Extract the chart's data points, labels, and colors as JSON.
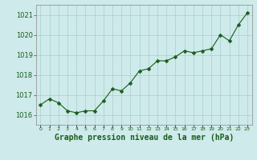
{
  "x": [
    0,
    1,
    2,
    3,
    4,
    5,
    6,
    7,
    8,
    9,
    10,
    11,
    12,
    13,
    14,
    15,
    16,
    17,
    18,
    19,
    20,
    21,
    22,
    23
  ],
  "y": [
    1016.5,
    1016.8,
    1016.6,
    1016.2,
    1016.1,
    1016.2,
    1016.2,
    1016.7,
    1017.3,
    1017.2,
    1017.6,
    1018.2,
    1018.3,
    1018.7,
    1018.7,
    1018.9,
    1019.2,
    1019.1,
    1019.2,
    1019.3,
    1020.0,
    1019.7,
    1020.5,
    1021.1
  ],
  "line_color": "#1a5c1a",
  "marker_color": "#1a5c1a",
  "bg_color": "#ceeaea",
  "grid_color": "#a8cece",
  "label_color": "#1a5c1a",
  "title": "Graphe pression niveau de la mer (hPa)",
  "ylim_min": 1015.5,
  "ylim_max": 1021.5,
  "yticks": [
    1016,
    1017,
    1018,
    1019,
    1020,
    1021
  ],
  "xticks": [
    0,
    1,
    2,
    3,
    4,
    5,
    6,
    7,
    8,
    9,
    10,
    11,
    12,
    13,
    14,
    15,
    16,
    17,
    18,
    19,
    20,
    21,
    22,
    23
  ],
  "spine_color": "#888888",
  "ytick_fontsize": 6,
  "xtick_fontsize": 4.5,
  "title_fontsize": 7
}
